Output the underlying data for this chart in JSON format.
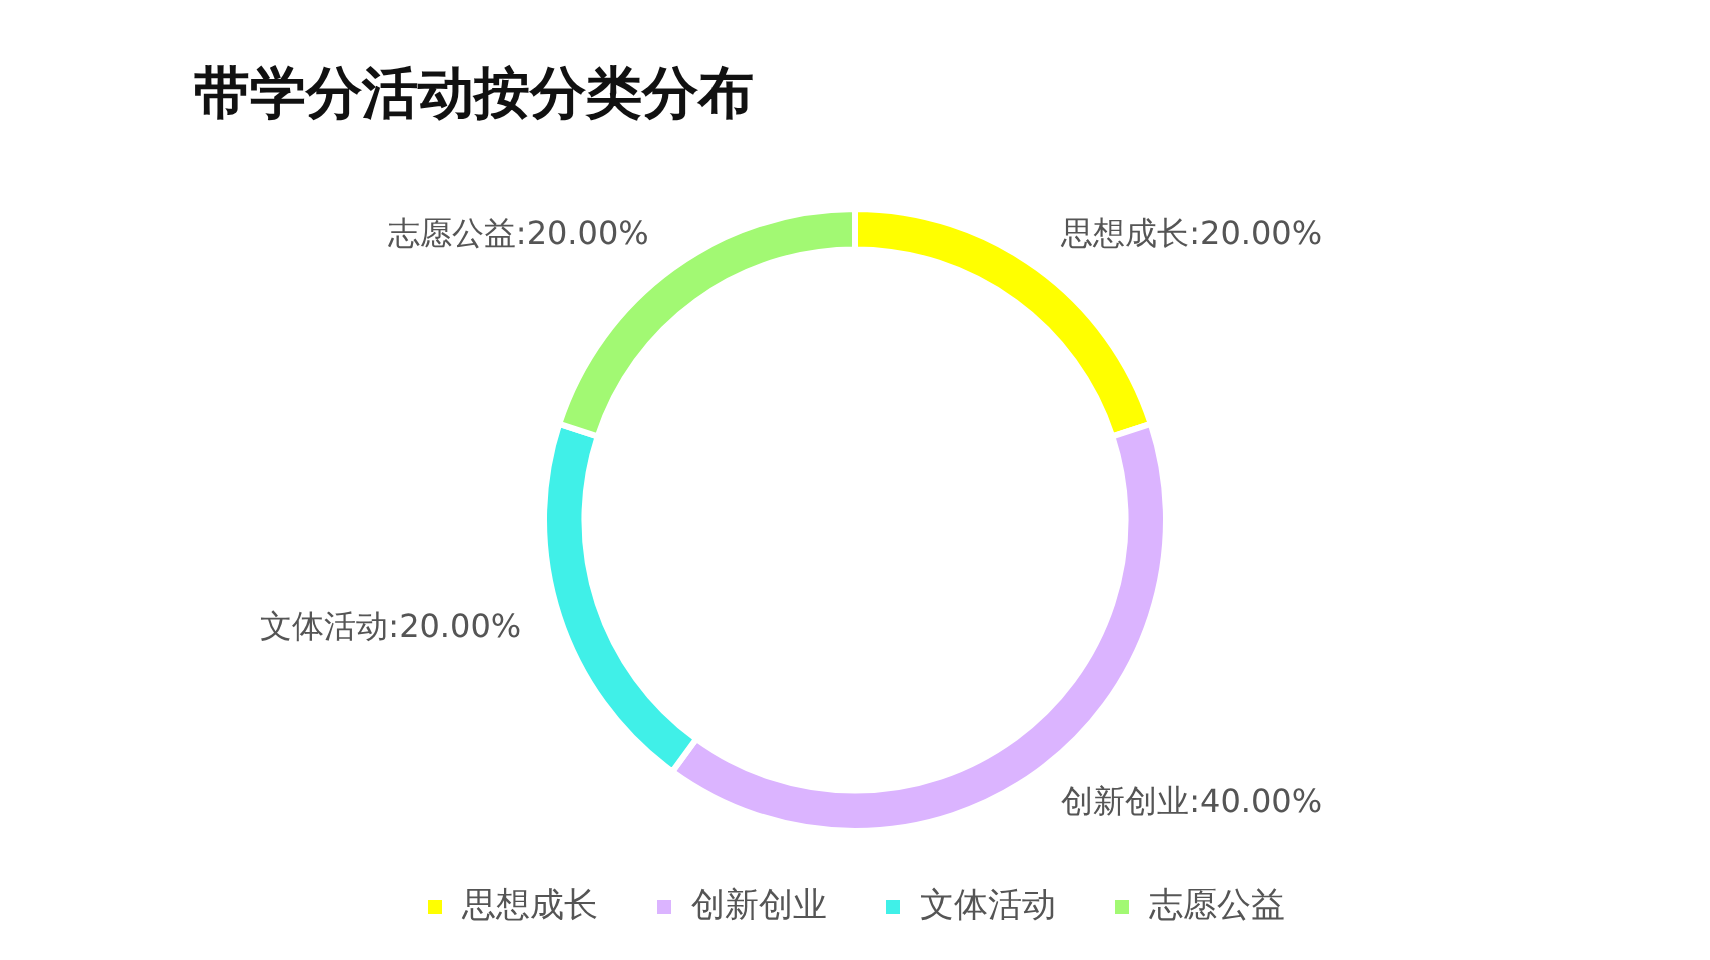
{
  "chart_data": {
    "type": "donut",
    "title": "带学分活动按分类分布",
    "categories": [
      "思想成长",
      "创新创业",
      "文体活动",
      "志愿公益"
    ],
    "values": [
      20,
      40,
      20,
      20
    ],
    "value_labels": [
      ":20.00%",
      ":40.00%",
      ":20.00%",
      ":20.00%"
    ],
    "colors": [
      "#ffff00",
      "#dbb4ff",
      "#40f0e8",
      "#a2f973"
    ],
    "legend": "bottom"
  }
}
